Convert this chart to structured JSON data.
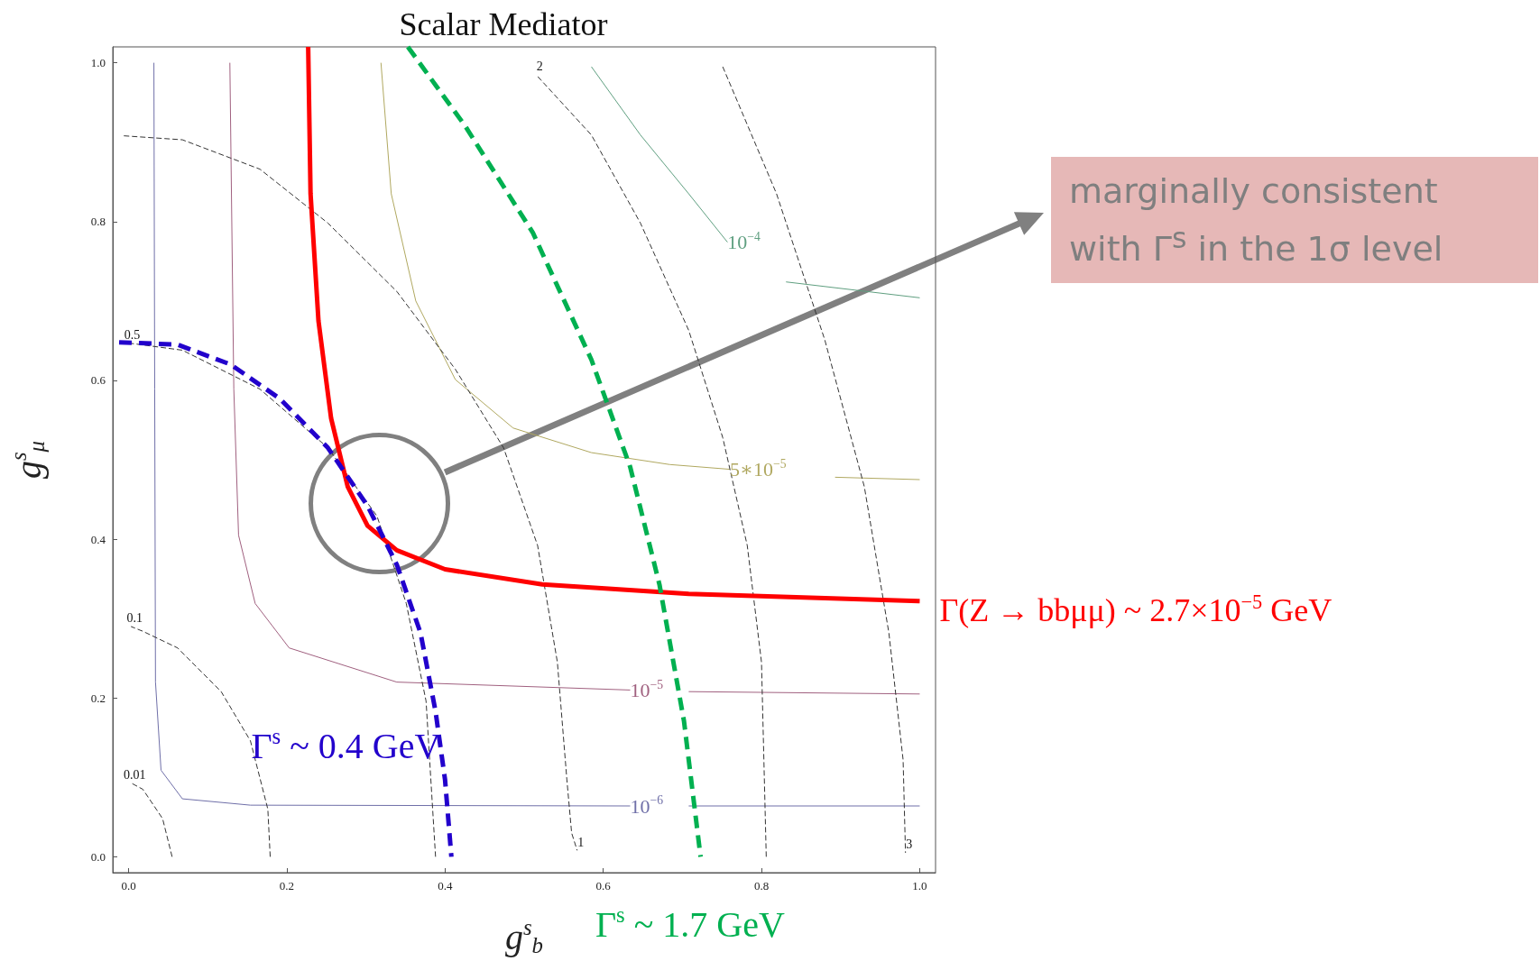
{
  "chart_data": {
    "type": "line",
    "title": "Scalar Mediator",
    "xlabel": "g$^{s}$$_{b}$",
    "ylabel": "g$^{s}$$_{μ}$",
    "xlim": [
      -0.02,
      1.02
    ],
    "ylim": [
      -0.02,
      1.02
    ],
    "xticks": [
      {
        "value": 0,
        "label": "0.0"
      },
      {
        "value": 0.2,
        "label": "0.2"
      },
      {
        "value": 0.4,
        "label": "0.4"
      },
      {
        "value": 0.6,
        "label": "0.6"
      },
      {
        "value": 0.8,
        "label": "0.8"
      },
      {
        "value": 1,
        "label": "1.0"
      }
    ],
    "yticks": [
      {
        "value": 0,
        "label": "0.0"
      },
      {
        "value": 0.2,
        "label": "0.2"
      },
      {
        "value": 0.4,
        "label": "0.4"
      },
      {
        "value": 0.6,
        "label": "0.6"
      },
      {
        "value": 0.8,
        "label": "0.8"
      },
      {
        "value": 1,
        "label": "1.0"
      }
    ],
    "grid": false,
    "legend": false,
    "marker": "none",
    "annotations": [
      "marginally consistent with Γ$^{s}$ in the 1σ level"
    ],
    "series": [
      {
        "name": "Γ(Z → bbμμ) ~ 2.7×10$^{−5}$ GeV",
        "color": "#ff0000",
        "line_style": "solid",
        "x": [
          0.227,
          0.23,
          0.24,
          0.256,
          0.277,
          0.302,
          0.339,
          0.4,
          0.523,
          0.708,
          1.0
        ],
        "values": [
          1.02,
          0.835,
          0.675,
          0.552,
          0.466,
          0.417,
          0.386,
          0.362,
          0.343,
          0.331,
          0.322
        ]
      },
      {
        "name": "Γ$^{s}$ ~ 0.4 GeV",
        "color": "#2200cc",
        "line_style": "dashed",
        "x": [
          -0.012,
          0.062,
          0.129,
          0.191,
          0.252,
          0.302,
          0.339,
          0.369,
          0.388,
          0.4,
          0.408
        ],
        "values": [
          0.648,
          0.645,
          0.62,
          0.577,
          0.515,
          0.442,
          0.368,
          0.282,
          0.183,
          0.097,
          0.0
        ]
      },
      {
        "name": "Γ$^{s}$ ~ 1.7 GeV",
        "color": "#00b050",
        "line_style": "dashed",
        "x": [
          0.353,
          0.425,
          0.511,
          0.585,
          0.634,
          0.671,
          0.702,
          0.723
        ],
        "values": [
          1.02,
          0.921,
          0.786,
          0.626,
          0.491,
          0.343,
          0.171,
          0.0
        ]
      },
      {
        "name": "10$^{−6}$",
        "color": "#6f6fa8",
        "line_style": "solid",
        "x": [
          0.032,
          0.033,
          0.034,
          0.041,
          0.068,
          0.154,
          0.634,
          0.67,
          0.708,
          1.0
        ],
        "values": [
          1.0,
          0.589,
          0.22,
          0.109,
          0.073,
          0.065,
          0.064,
          null,
          0.064,
          0.064
        ]
      },
      {
        "name": "10$^{−5}$",
        "color": "#a0607f",
        "line_style": "solid",
        "x": [
          0.128,
          0.133,
          0.139,
          0.16,
          0.203,
          0.339,
          0.634,
          0.67,
          0.708,
          1.0
        ],
        "values": [
          1.0,
          0.589,
          0.405,
          0.319,
          0.263,
          0.22,
          0.21,
          null,
          0.208,
          0.205
        ]
      },
      {
        "name": "5∗10$^{−5}$",
        "color": "#b0a860",
        "line_style": "solid",
        "x": [
          0.319,
          0.332,
          0.363,
          0.413,
          0.486,
          0.585,
          0.684,
          0.76,
          0.82,
          0.893,
          1.0
        ],
        "values": [
          1.0,
          0.835,
          0.7,
          0.601,
          0.54,
          0.509,
          0.494,
          0.488,
          null,
          0.478,
          0.475
        ]
      },
      {
        "name": "10$^{−4}$",
        "color": "#5f9f80",
        "line_style": "solid",
        "x": [
          0.585,
          0.647,
          0.708,
          0.757,
          0.79,
          0.831,
          1.0
        ],
        "values": [
          0.995,
          0.909,
          0.835,
          0.774,
          null,
          0.724,
          0.704
        ]
      },
      {
        "name": "0.01",
        "color": "#333333",
        "line_style": "dashed",
        "x": [
          0.055,
          0.043,
          0.018,
          0.003
        ],
        "values": [
          0.0,
          0.048,
          0.085,
          0.093
        ]
      },
      {
        "name": "0.1",
        "color": "#333333",
        "line_style": "dashed",
        "x": [
          0.179,
          0.176,
          0.154,
          0.117,
          0.062,
          0.018,
          0.003
        ],
        "values": [
          0.0,
          0.06,
          0.146,
          0.208,
          0.263,
          0.284,
          0.29
        ]
      },
      {
        "name": "0.5",
        "color": "#333333",
        "line_style": "dashed",
        "x": [
          0.388,
          0.376,
          0.351,
          0.314,
          0.252,
          0.166,
          0.068,
          0.0
        ],
        "values": [
          0.0,
          0.196,
          0.319,
          0.429,
          0.515,
          0.589,
          0.638,
          0.647
        ]
      },
      {
        "name": "1",
        "color": "#333333",
        "line_style": "dashed",
        "x": [
          -0.006,
          0.068,
          0.166,
          0.252,
          0.339,
          0.413,
          0.474,
          0.517,
          0.542,
          0.554,
          0.56,
          0.567
        ],
        "values": [
          0.908,
          0.903,
          0.866,
          0.798,
          0.712,
          0.614,
          0.515,
          0.392,
          0.245,
          0.097,
          0.03,
          0.008
        ]
      },
      {
        "name": "2",
        "color": "#333333",
        "line_style": "dashed",
        "x": [
          0.806,
          0.8,
          0.782,
          0.751,
          0.708,
          0.647,
          0.585,
          0.515
        ],
        "values": [
          0.0,
          0.245,
          0.392,
          0.528,
          0.663,
          0.798,
          0.909,
          0.985
        ]
      },
      {
        "name": "3",
        "color": "#333333",
        "line_style": "dashed",
        "x": [
          0.751,
          0.819,
          0.88,
          0.93,
          0.961,
          0.979,
          0.982
        ],
        "values": [
          0.995,
          0.835,
          0.651,
          0.466,
          0.282,
          0.122,
          0.005
        ]
      }
    ]
  }
}
